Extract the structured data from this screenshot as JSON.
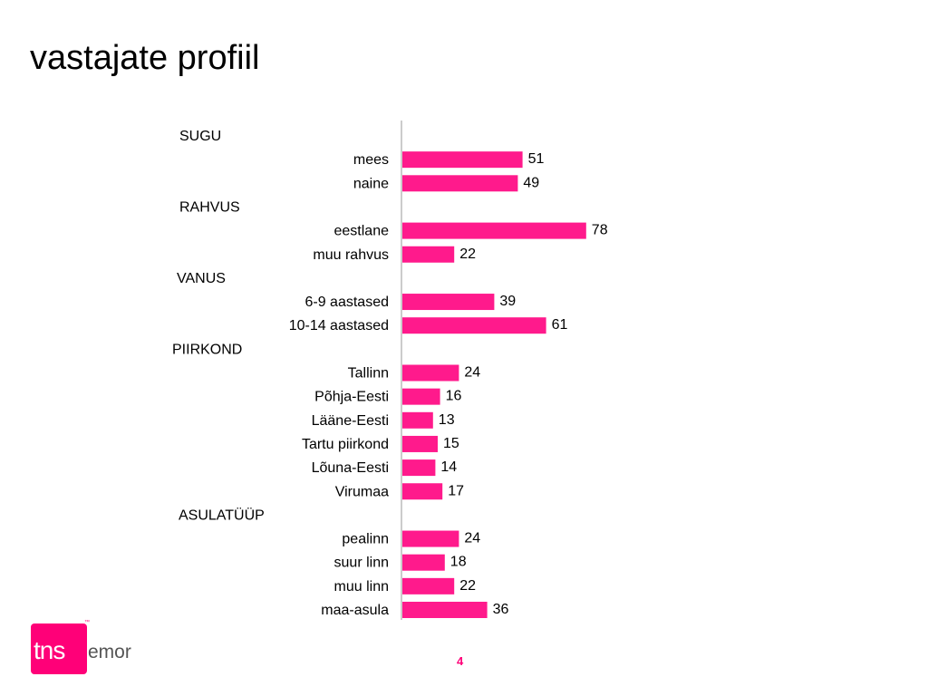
{
  "page": {
    "title": "vastajate profiil",
    "page_number": "4"
  },
  "logo": {
    "tns": "tns",
    "emor": "emor",
    "trademark": "™"
  },
  "colors": {
    "bar": "#ff1a8c",
    "axis": "#999999",
    "brand": "#ff0078"
  },
  "chart_data": {
    "type": "bar",
    "orientation": "horizontal",
    "title": "",
    "xlabel": "",
    "ylabel": "",
    "xlim": [
      0,
      100
    ],
    "grid": false,
    "legend": false,
    "rows": [
      {
        "kind": "group",
        "label": "SUGU"
      },
      {
        "kind": "bar",
        "label": "mees",
        "value": 51
      },
      {
        "kind": "bar",
        "label": "naine",
        "value": 49
      },
      {
        "kind": "group",
        "label": "RAHVUS"
      },
      {
        "kind": "bar",
        "label": "eestlane",
        "value": 78
      },
      {
        "kind": "bar",
        "label": "muu rahvus",
        "value": 22
      },
      {
        "kind": "group",
        "label": "VANUS"
      },
      {
        "kind": "bar",
        "label": "6-9 aastased",
        "value": 39
      },
      {
        "kind": "bar",
        "label": "10-14 aastased",
        "value": 61
      },
      {
        "kind": "group",
        "label": "PIIRKOND"
      },
      {
        "kind": "bar",
        "label": "Tallinn",
        "value": 24
      },
      {
        "kind": "bar",
        "label": "Põhja-Eesti",
        "value": 16
      },
      {
        "kind": "bar",
        "label": "Lääne-Eesti",
        "value": 13
      },
      {
        "kind": "bar",
        "label": "Tartu piirkond",
        "value": 15
      },
      {
        "kind": "bar",
        "label": "Lõuna-Eesti",
        "value": 14
      },
      {
        "kind": "bar",
        "label": "Virumaa",
        "value": 17
      },
      {
        "kind": "group",
        "label": "ASULATÜÜP"
      },
      {
        "kind": "bar",
        "label": "pealinn",
        "value": 24
      },
      {
        "kind": "bar",
        "label": "suur linn",
        "value": 18
      },
      {
        "kind": "bar",
        "label": "muu linn",
        "value": 22
      },
      {
        "kind": "bar",
        "label": "maa-asula",
        "value": 36
      }
    ]
  }
}
